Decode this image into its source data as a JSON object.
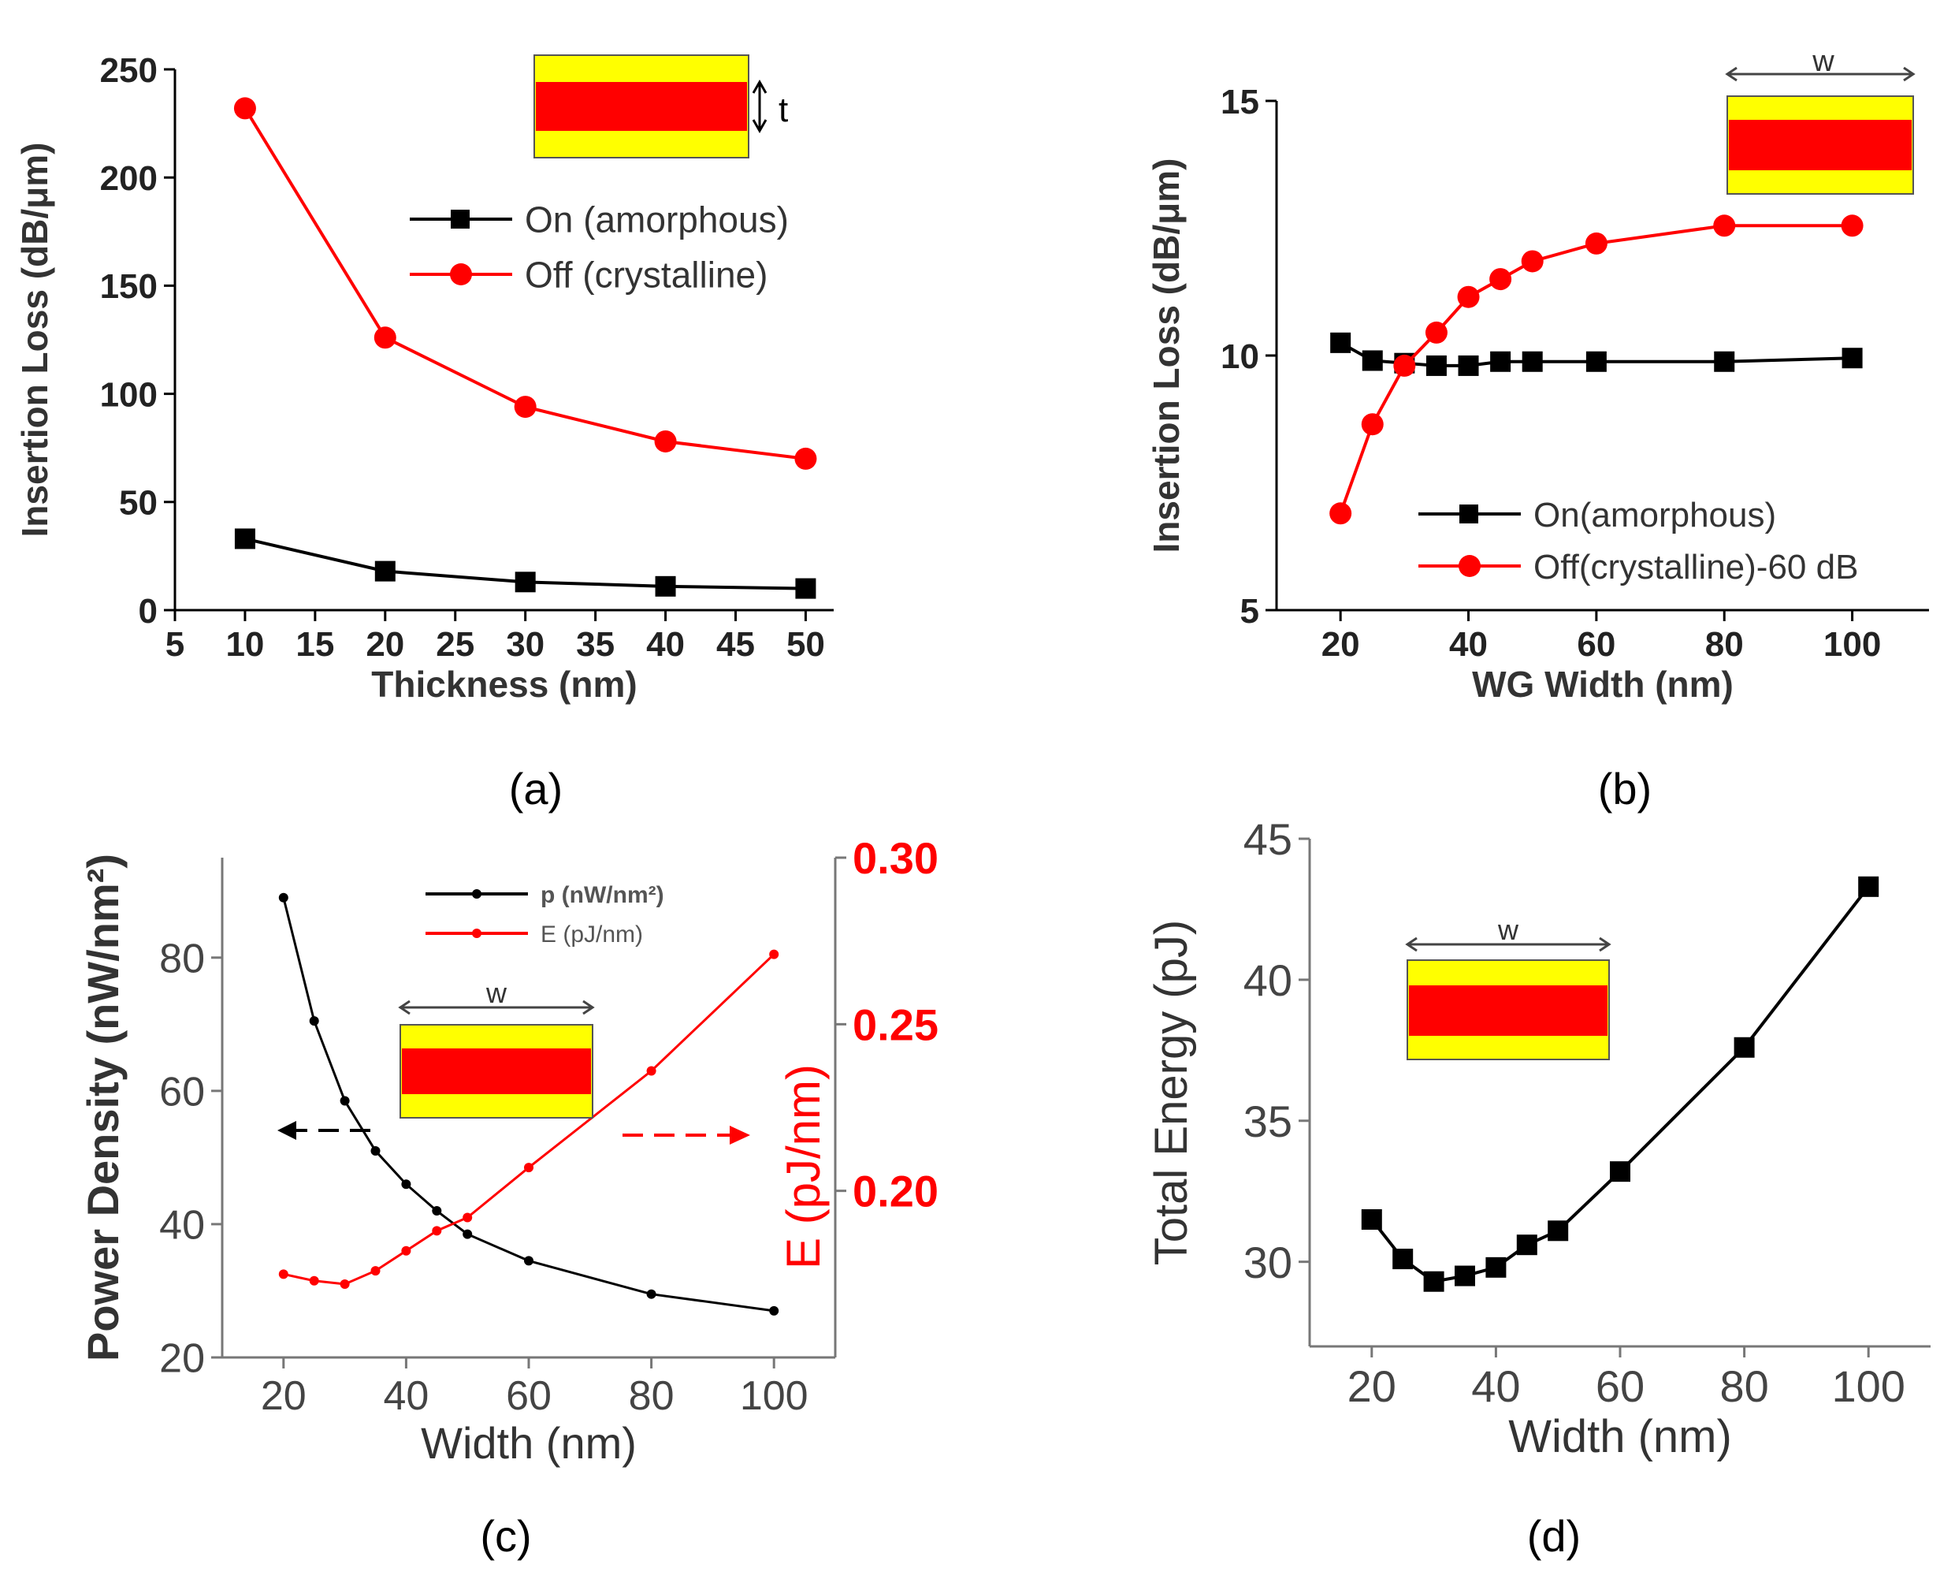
{
  "chart_data": [
    {
      "id": "a",
      "type": "line",
      "panel_label": "(a)",
      "title": "",
      "xlabel": "Thickness (nm)",
      "ylabel": "Insertion Loss (dB/μm)",
      "xlim": [
        5,
        52
      ],
      "ylim": [
        0,
        250
      ],
      "xticks": [
        5,
        10,
        15,
        20,
        25,
        30,
        35,
        40,
        45,
        50
      ],
      "yticks": [
        0,
        50,
        100,
        150,
        200,
        250
      ],
      "legend_position": "top-right",
      "inset_label": "t",
      "series": [
        {
          "name": "On (amorphous)",
          "marker": "square",
          "color": "#000000",
          "x": [
            10,
            20,
            30,
            40,
            50
          ],
          "y": [
            33,
            18,
            13,
            11,
            10
          ]
        },
        {
          "name": "Off (crystalline)",
          "marker": "circle",
          "color": "#ff0000",
          "x": [
            10,
            20,
            30,
            40,
            50
          ],
          "y": [
            232,
            126,
            94,
            78,
            70
          ]
        }
      ]
    },
    {
      "id": "b",
      "type": "line",
      "panel_label": "(b)",
      "title": "",
      "xlabel": "WG Width (nm)",
      "ylabel": "Insertion Loss (dB/μm)",
      "xlim": [
        10,
        112
      ],
      "ylim": [
        5,
        15
      ],
      "xticks": [
        20,
        40,
        60,
        80,
        100
      ],
      "yticks": [
        5,
        10,
        15
      ],
      "legend_position": "bottom-right",
      "inset_label": "w",
      "series": [
        {
          "name": "On(amorphous)",
          "marker": "square",
          "color": "#000000",
          "x": [
            20,
            25,
            30,
            35,
            40,
            45,
            50,
            60,
            80,
            100
          ],
          "y": [
            10.25,
            9.9,
            9.85,
            9.8,
            9.8,
            9.88,
            9.88,
            9.88,
            9.88,
            9.95
          ]
        },
        {
          "name": "Off(crystalline)-60 dB",
          "marker": "circle",
          "color": "#ff0000",
          "x": [
            20,
            25,
            30,
            35,
            40,
            45,
            50,
            60,
            80,
            100
          ],
          "y": [
            6.9,
            8.65,
            9.8,
            10.45,
            11.15,
            11.5,
            11.85,
            12.2,
            12.55,
            12.55
          ]
        }
      ]
    },
    {
      "id": "c",
      "type": "line",
      "panel_label": "(c)",
      "title": "",
      "xlabel": "Width (nm)",
      "ylabel": "Power Density (nW/nm²)",
      "y2label": "E (pJ/nm)",
      "xlim": [
        10,
        110
      ],
      "ylim": [
        20,
        95
      ],
      "y2lim": [
        0.15,
        0.3
      ],
      "xticks": [
        20,
        40,
        60,
        80,
        100
      ],
      "yticks": [
        20,
        40,
        60,
        80
      ],
      "y2ticks": [
        "0.20",
        "0.25",
        "0.30"
      ],
      "legend_position": "top-left",
      "inset_label": "w",
      "series": [
        {
          "name": "p (nW/nm²)",
          "axis": "left",
          "marker": "dot",
          "color": "#000000",
          "x": [
            20,
            25,
            30,
            35,
            40,
            45,
            50,
            60,
            80,
            100
          ],
          "y": [
            89,
            70.5,
            58.5,
            51,
            46,
            42,
            38.5,
            34.5,
            29.5,
            27
          ]
        },
        {
          "name": "E (pJ/nm)",
          "axis": "right",
          "marker": "dot",
          "color": "#ff0000",
          "x": [
            20,
            25,
            30,
            35,
            40,
            45,
            50,
            60,
            80,
            100
          ],
          "y": [
            0.175,
            0.173,
            0.172,
            0.176,
            0.182,
            0.188,
            0.192,
            0.207,
            0.236,
            0.271
          ]
        }
      ]
    },
    {
      "id": "d",
      "type": "line",
      "panel_label": "(d)",
      "title": "",
      "xlabel": "Width (nm)",
      "ylabel": "Total Energy (pJ)",
      "xlim": [
        10,
        110
      ],
      "ylim": [
        27,
        45
      ],
      "xticks": [
        20,
        40,
        60,
        80,
        100
      ],
      "yticks": [
        30,
        35,
        40,
        45
      ],
      "inset_label": "w",
      "series": [
        {
          "name": "Total Energy",
          "marker": "square",
          "color": "#000000",
          "x": [
            20,
            25,
            30,
            35,
            40,
            45,
            50,
            60,
            80,
            100
          ],
          "y": [
            31.5,
            30.1,
            29.3,
            29.5,
            29.8,
            30.6,
            31.1,
            33.2,
            37.6,
            43.3
          ]
        }
      ]
    }
  ]
}
